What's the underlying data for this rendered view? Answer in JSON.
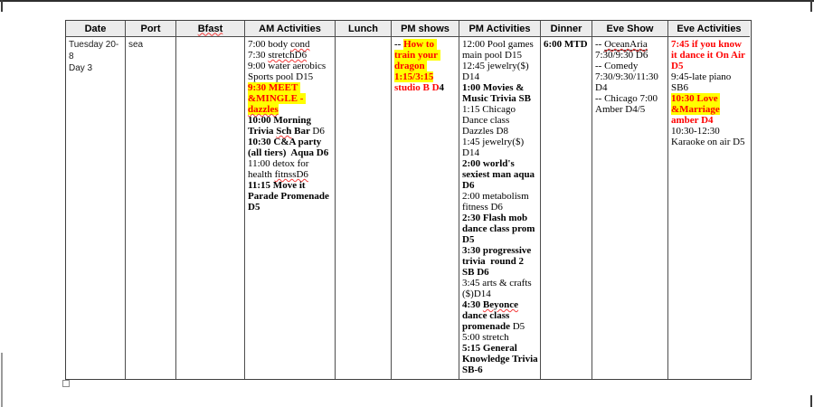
{
  "document": {
    "type": "cruise-daily-schedule-table",
    "colors": {
      "highlight": "#ffff00",
      "alert_text": "#fe0000",
      "header_bg": "#ececec",
      "grid": "#4d4d4d"
    },
    "table": {
      "headers": [
        {
          "key": "date",
          "label": "Date"
        },
        {
          "key": "port",
          "label": "Port"
        },
        {
          "key": "bfast",
          "label": "Bfast",
          "sq": 1
        },
        {
          "key": "am-activities",
          "label": "AM Activities"
        },
        {
          "key": "lunch",
          "label": "Lunch"
        },
        {
          "key": "pm-shows",
          "label": "PM shows"
        },
        {
          "key": "pm-activities",
          "label": "PM Activities"
        },
        {
          "key": "dinner",
          "label": "Dinner"
        },
        {
          "key": "eve-show",
          "label": "Eve Show"
        },
        {
          "key": "eve-activities",
          "label": "Eve Activities"
        }
      ],
      "cells": [
        {
          "key": "date",
          "font": "sans",
          "entries": [
            [
              {
                "t": "Tuesday 20-8"
              }
            ],
            [
              {
                "t": "Day 3"
              }
            ]
          ]
        },
        {
          "key": "port",
          "font": "sans",
          "entries": [
            [
              {
                "t": "sea"
              }
            ]
          ]
        },
        {
          "key": "bfast",
          "font": "serif",
          "entries": []
        },
        {
          "key": "am-activities",
          "font": "serif",
          "entries": [
            [
              {
                "t": "7:00 body "
              },
              {
                "t": "cond",
                "s": 1
              }
            ],
            [
              {
                "t": "7:30 "
              },
              {
                "t": "stretchD6",
                "s": 1
              }
            ],
            [
              {
                "t": "9:00 water aerobics Sports pool D15"
              }
            ],
            [
              {
                "t": "9:30 MEET &MINGLE - ",
                "b": 1,
                "r": 1,
                "h": 1
              },
              {
                "t": "dazzles",
                "b": 1,
                "r": 1,
                "h": 1,
                "s": 1
              }
            ],
            [
              {
                "t": "10:00 Morning Trivia ",
                "b": 1
              },
              {
                "t": "Sch",
                "b": 1,
                "s": 1
              },
              {
                "t": " Bar ",
                "b": 1
              },
              {
                "t": "D6"
              }
            ],
            [
              {
                "t": "10:30 C&A party (all tiers)  Aqua D6",
                "b": 1
              }
            ],
            [
              {
                "t": "11:00 detox for health "
              },
              {
                "t": "fitnssD6",
                "s": 1
              }
            ],
            [
              {
                "t": "11:15 Move it Parade Promenade D5",
                "b": 1
              }
            ]
          ]
        },
        {
          "key": "lunch",
          "font": "serif",
          "entries": []
        },
        {
          "key": "pm-shows",
          "font": "serif",
          "entries": [
            [
              {
                "t": "-- ",
                "b": 1
              },
              {
                "t": "How to train your dragon 1:15/3:15",
                "b": 1,
                "r": 1,
                "h": 1
              },
              {
                "t": " ",
                "b": 1
              },
              {
                "t": "studio B D",
                "b": 1,
                "r": 1
              },
              {
                "t": "4",
                "b": 1
              }
            ]
          ]
        },
        {
          "key": "pm-activities",
          "font": "serif",
          "entries": [
            [
              {
                "t": "12:00 Pool games main pool D15"
              }
            ],
            [
              {
                "t": "12:45 jewelry($) D14"
              }
            ],
            [
              {
                "t": "1:00 Movies & Music Trivia SB",
                "b": 1
              }
            ],
            [
              {
                "t": "1:15 Chicago Dance class Dazzles D8"
              }
            ],
            [
              {
                "t": "1:45 jewelry($) D14"
              }
            ],
            [
              {
                "t": "2:00 world's sexiest man aqua D6",
                "b": 1
              }
            ],
            [
              {
                "t": "2:00 metabolism fitness D6"
              }
            ],
            [
              {
                "t": "2:30 Flash mob dance class prom D5",
                "b": 1
              }
            ],
            [
              {
                "t": "3:30 progressive trivia  round 2 SB D6",
                "b": 1
              }
            ],
            [
              {
                "t": "3:45 arts & crafts ($)D14"
              }
            ],
            [
              {
                "t": "4:30 ",
                "b": 1
              },
              {
                "t": "Beyonce",
                "b": 1,
                "s": 1
              },
              {
                "t": " dance class promenade ",
                "b": 1
              },
              {
                "t": "D5"
              }
            ],
            [
              {
                "t": "5:00 stretch"
              }
            ],
            [
              {
                "t": "5:15 General Knowledge Trivia SB-6",
                "b": 1
              }
            ]
          ]
        },
        {
          "key": "dinner",
          "font": "serif",
          "entries": [
            [
              {
                "t": "6:00 MTD",
                "b": 1,
                "nw": 1
              }
            ]
          ]
        },
        {
          "key": "eve-show",
          "font": "serif",
          "entries": [
            [
              {
                "t": "-- "
              },
              {
                "t": "OceanAria",
                "u": 1,
                "s": 1
              },
              {
                "t": " 7:30/9:30 D6"
              }
            ],
            [
              {
                "t": "-- Comedy 7:30/9:30/11:30 D4"
              }
            ],
            [
              {
                "t": "-- Chicago 7:00 Amber D4/5"
              }
            ]
          ]
        },
        {
          "key": "eve-activities",
          "font": "serif",
          "entries": [
            [
              {
                "t": "7:45 if you know it dance it On Air D5",
                "b": 1,
                "r": 1
              }
            ],
            [
              {
                "t": "9:45-late piano SB6"
              }
            ],
            [
              {
                "t": "10:30 Love &Marriage",
                "b": 1,
                "r": 1,
                "h": 1
              },
              {
                "t": " ",
                "b": 1,
                "r": 1
              },
              {
                "t": "amber D4",
                "b": 1,
                "r": 1
              }
            ],
            [
              {
                "t": "10:30-12:30 Karaoke on air D5"
              }
            ]
          ]
        }
      ]
    }
  }
}
